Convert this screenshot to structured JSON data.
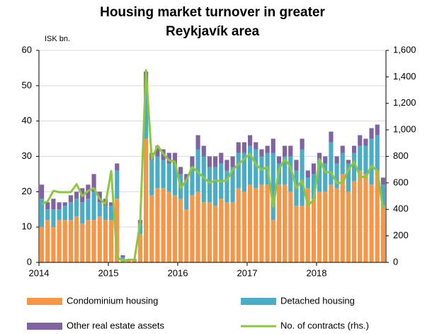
{
  "chart_data": {
    "type": "bar_line",
    "title": [
      "Housing market turnover in greater",
      "Reykjavík area"
    ],
    "y_unit": "ISK bn.",
    "categories": [
      "2014",
      null,
      null,
      null,
      null,
      null,
      null,
      null,
      null,
      null,
      null,
      null,
      "2015",
      null,
      null,
      null,
      null,
      null,
      null,
      null,
      null,
      null,
      null,
      null,
      "2016",
      null,
      null,
      null,
      null,
      null,
      null,
      null,
      null,
      null,
      null,
      null,
      "2017",
      null,
      null,
      null,
      null,
      null,
      null,
      null,
      null,
      null,
      null,
      null,
      "2018",
      null,
      null,
      null,
      null,
      null,
      null,
      null,
      null,
      null,
      null,
      null
    ],
    "series": [
      {
        "name": "Condominium housing",
        "color": "#f79646",
        "stack": true,
        "values": [
          10,
          12,
          10,
          12,
          12,
          12,
          13,
          11,
          12,
          12,
          13,
          12,
          12,
          18,
          1,
          0.5,
          0.5,
          8,
          35,
          19,
          21,
          21,
          20,
          19,
          18,
          15,
          19,
          20,
          17,
          17,
          16,
          18,
          17,
          17,
          21,
          20,
          22,
          21,
          22,
          22,
          12,
          22,
          22,
          20,
          16,
          16,
          21,
          18,
          20,
          20,
          22,
          21,
          25,
          20,
          23,
          26,
          25,
          22,
          26,
          16
        ]
      },
      {
        "name": "Detached housing",
        "color": "#4bacc6",
        "stack": true,
        "values": [
          8,
          3,
          5,
          3,
          4,
          5,
          5,
          6,
          6,
          8,
          4,
          4,
          4,
          8,
          0.5,
          0.5,
          0.5,
          3,
          13,
          10,
          9,
          8,
          8,
          9,
          7,
          8,
          8,
          12,
          13,
          10,
          11,
          10,
          9,
          10,
          10,
          11,
          11,
          11,
          8,
          9,
          19,
          6,
          8,
          10,
          10,
          16,
          3,
          7,
          9,
          8,
          12,
          7,
          6,
          8,
          8,
          7,
          8,
          13,
          10,
          6
        ]
      },
      {
        "name": "Other real estate assets",
        "color": "#8064a2",
        "stack": true,
        "values": [
          4,
          2,
          3,
          2,
          1,
          2,
          2,
          4,
          4,
          5,
          3,
          2,
          1,
          2,
          0.5,
          0,
          0,
          1,
          6,
          2,
          3,
          3,
          3,
          3,
          2,
          2,
          3,
          4,
          3,
          3,
          3,
          3,
          3,
          3,
          3,
          3,
          3,
          2,
          2,
          2,
          4,
          2,
          3,
          3,
          3,
          3,
          2,
          3,
          2,
          2,
          3,
          2,
          2,
          1,
          2,
          3,
          2,
          3,
          3,
          2
        ]
      },
      {
        "name": "No. of contracts (rhs.)",
        "color": "#8dc63f",
        "axis": "y2",
        "values": [
          440,
          460,
          540,
          530,
          530,
          530,
          590,
          500,
          540,
          560,
          480,
          440,
          690,
          40,
          10,
          20,
          20,
          300,
          1450,
          780,
          880,
          820,
          770,
          760,
          560,
          620,
          720,
          680,
          640,
          600,
          620,
          610,
          620,
          700,
          740,
          780,
          820,
          740,
          700,
          720,
          420,
          700,
          780,
          720,
          560,
          620,
          430,
          470,
          780,
          680,
          680,
          600,
          600,
          700,
          760,
          650,
          640,
          730,
          690,
          400
        ]
      }
    ],
    "ylim": [
      0,
      60
    ],
    "yticks": [
      0,
      10,
      20,
      30,
      40,
      50,
      60
    ],
    "y2lim": [
      0,
      1600
    ],
    "y2ticks": [
      0,
      200,
      400,
      600,
      800,
      {
        "value": 1000,
        "label": "1,000"
      },
      {
        "value": 1200,
        "label": "1,200"
      },
      {
        "value": 1400,
        "label": "1,400"
      },
      {
        "value": 1600,
        "label": "1,600"
      }
    ],
    "grid": true,
    "legend": "bottom"
  }
}
